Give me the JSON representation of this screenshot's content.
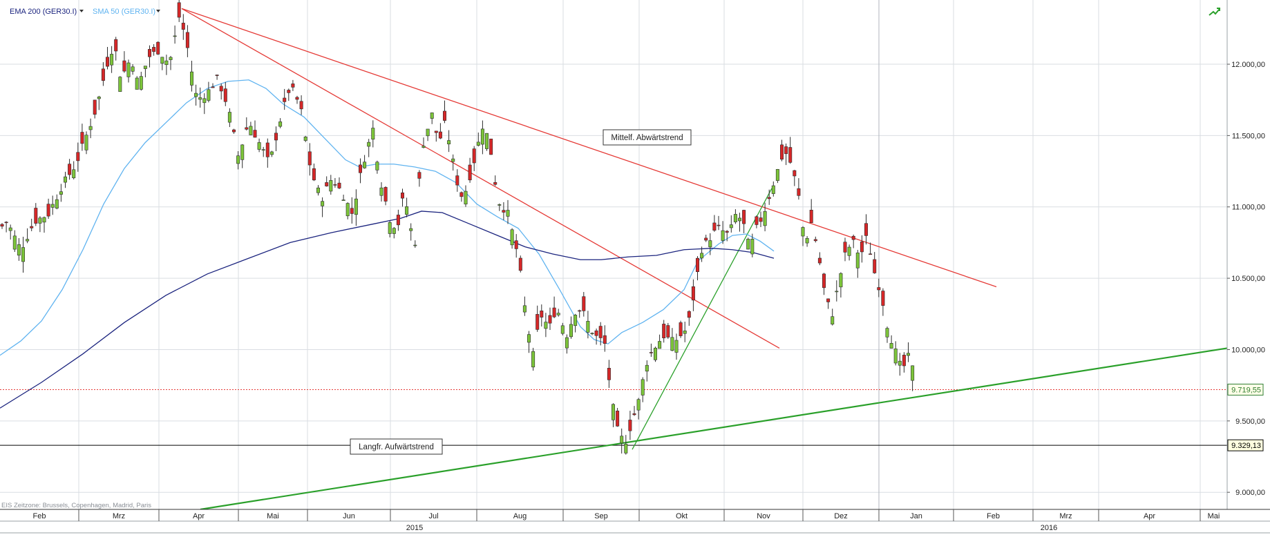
{
  "chart_data": {
    "type": "candlestick",
    "symbol": "GER30.I",
    "legend": [
      {
        "label": "EMA 200 (GER30.I)",
        "color": "#1a237e"
      },
      {
        "label": "SMA 50 (GER30.I)",
        "color": "#5fb3f0"
      }
    ],
    "y_axis": {
      "range": [
        8880,
        12450
      ],
      "ticks": [
        "9.000,00",
        "9.500,00",
        "10.000,00",
        "10.500,00",
        "11.000,00",
        "11.500,00",
        "12.000,00"
      ],
      "tick_values": [
        9000,
        9500,
        10000,
        10500,
        11000,
        11500,
        12000
      ]
    },
    "x_axis": {
      "months": [
        "Feb",
        "Mrz",
        "Apr",
        "Mai",
        "Jun",
        "Jul",
        "Aug",
        "Sep",
        "Okt",
        "Nov",
        "Dez",
        "Jan",
        "Feb",
        "Mrz",
        "Apr",
        "Mai"
      ],
      "years": [
        "2015",
        "2016"
      ]
    },
    "price_labels": [
      {
        "text": "9.719,55",
        "value": 9719.55,
        "color": "#2e7d32",
        "line": "dotted-red"
      },
      {
        "text": "9.329,13",
        "value": 9329.13,
        "color": "#000000",
        "line": "solid-black"
      }
    ],
    "annotations": [
      {
        "text": "Mittelf. Abwärtstrend"
      },
      {
        "text": "Langfr. Aufwärtstrend"
      }
    ],
    "trendlines": [
      {
        "kind": "medium-term downtrend",
        "color": "#e53935",
        "from": {
          "month": "Apr",
          "value": 12390
        },
        "to": {
          "month": "Jan",
          "value": 10440
        }
      },
      {
        "kind": "steep downtrend",
        "color": "#e53935",
        "from": {
          "month": "Apr",
          "value": 12390
        },
        "to": {
          "month": "Nov",
          "value": 10010
        }
      },
      {
        "kind": "long-term uptrend",
        "color": "#2aa02a",
        "from": {
          "month": "Apr",
          "value": 8880
        },
        "to": {
          "month": "Mai",
          "value": 10010
        }
      },
      {
        "kind": "short uptrend",
        "color": "#2aa02a",
        "from": {
          "month": "Sep",
          "value": 9300
        },
        "to": {
          "month": "Nov",
          "value": 11130
        }
      }
    ],
    "sma50": [
      [
        0,
        9960
      ],
      [
        30,
        10060
      ],
      [
        60,
        10200
      ],
      [
        90,
        10420
      ],
      [
        120,
        10700
      ],
      [
        150,
        11020
      ],
      [
        180,
        11270
      ],
      [
        210,
        11450
      ],
      [
        240,
        11590
      ],
      [
        270,
        11730
      ],
      [
        300,
        11830
      ],
      [
        330,
        11880
      ],
      [
        360,
        11890
      ],
      [
        385,
        11830
      ],
      [
        410,
        11720
      ],
      [
        440,
        11630
      ],
      [
        470,
        11480
      ],
      [
        500,
        11330
      ],
      [
        520,
        11280
      ],
      [
        545,
        11300
      ],
      [
        570,
        11300
      ],
      [
        600,
        11280
      ],
      [
        630,
        11250
      ],
      [
        660,
        11170
      ],
      [
        690,
        11020
      ],
      [
        720,
        10930
      ],
      [
        750,
        10850
      ],
      [
        780,
        10670
      ],
      [
        810,
        10420
      ],
      [
        840,
        10160
      ],
      [
        860,
        10070
      ],
      [
        880,
        10040
      ],
      [
        900,
        10120
      ],
      [
        930,
        10190
      ],
      [
        960,
        10280
      ],
      [
        990,
        10420
      ],
      [
        1010,
        10620
      ],
      [
        1040,
        10740
      ],
      [
        1060,
        10800
      ],
      [
        1080,
        10810
      ],
      [
        1100,
        10760
      ],
      [
        1120,
        10690
      ]
    ],
    "ema200": [
      [
        0,
        9590
      ],
      [
        60,
        9770
      ],
      [
        120,
        9970
      ],
      [
        180,
        10190
      ],
      [
        240,
        10380
      ],
      [
        300,
        10530
      ],
      [
        360,
        10640
      ],
      [
        420,
        10750
      ],
      [
        480,
        10820
      ],
      [
        540,
        10880
      ],
      [
        580,
        10920
      ],
      [
        610,
        10970
      ],
      [
        640,
        10960
      ],
      [
        680,
        10880
      ],
      [
        720,
        10800
      ],
      [
        760,
        10720
      ],
      [
        800,
        10670
      ],
      [
        840,
        10630
      ],
      [
        870,
        10630
      ],
      [
        910,
        10650
      ],
      [
        950,
        10660
      ],
      [
        990,
        10700
      ],
      [
        1030,
        10710
      ],
      [
        1060,
        10700
      ],
      [
        1090,
        10680
      ],
      [
        1120,
        10640
      ]
    ]
  },
  "status": {
    "timezone_note": "EIS   Zeitzone: Brussels, Copenhagen, Madrid, Paris"
  },
  "icons": {
    "corner": "chart-type-icon"
  }
}
